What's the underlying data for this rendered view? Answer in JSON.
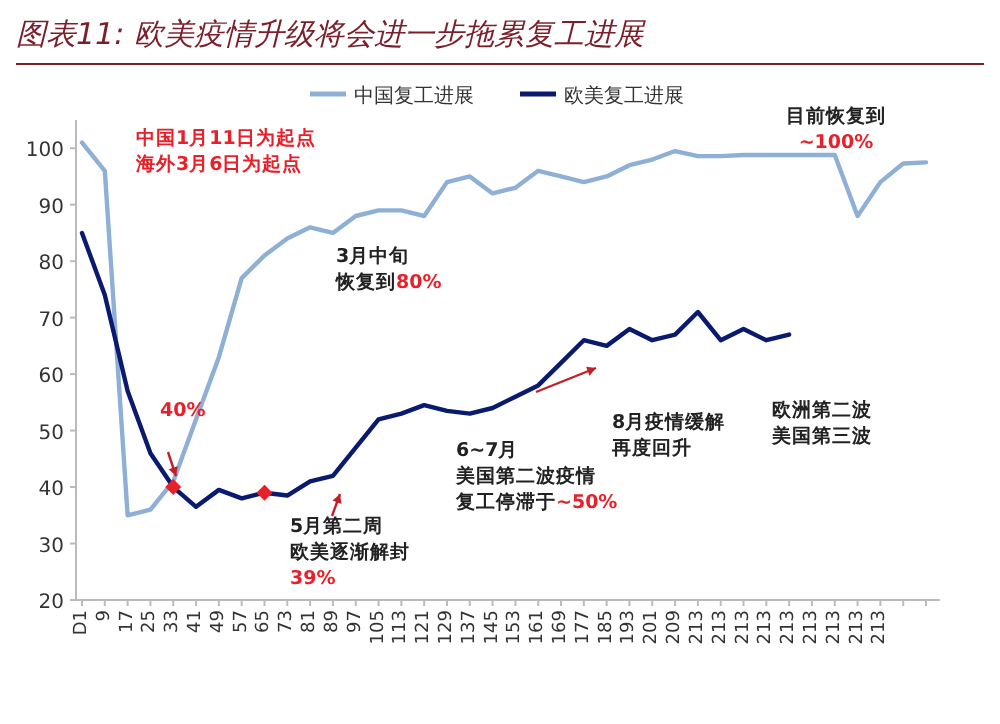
{
  "chart_data": {
    "type": "line",
    "title": "图表11: 欧美疫情升级将会进一步拖累复工进展",
    "categories": [
      "D1",
      "9",
      "17",
      "25",
      "33",
      "41",
      "49",
      "57",
      "65",
      "73",
      "81",
      "89",
      "97",
      "105",
      "113",
      "121",
      "129",
      "137",
      "145",
      "153",
      "161",
      "169",
      "177",
      "185",
      "193",
      "201",
      "209",
      "213",
      "213",
      "213",
      "213",
      "213",
      "213",
      "213",
      "213",
      "213",
      null,
      null
    ],
    "series": [
      {
        "name": "中国复工进展",
        "color": "#8fb0d6",
        "values": [
          101,
          96,
          35,
          36,
          41,
          52,
          63,
          77,
          81,
          84,
          86,
          85,
          88,
          89,
          89,
          88,
          94,
          95,
          92,
          93,
          96,
          95,
          94,
          95,
          97,
          98,
          99.5,
          98.6,
          98.6,
          98.8,
          98.8,
          98.8,
          98.8,
          98.8,
          88,
          94,
          97.3,
          97.5
        ]
      },
      {
        "name": "欧美复工进展",
        "color": "#0a1a6e",
        "values": [
          85,
          74,
          57,
          46,
          40,
          36.5,
          39.5,
          38,
          39,
          38.5,
          41,
          42,
          47,
          52,
          53,
          54.5,
          53.5,
          53,
          54,
          56,
          58,
          62,
          66,
          65,
          68,
          66,
          67,
          71,
          66,
          68,
          66,
          67,
          null,
          null,
          null,
          null,
          null,
          null
        ]
      },
      {
        "type": "scatter",
        "marker": "diamond",
        "color": "#e8202a",
        "values": [
          null,
          null,
          null,
          null,
          40,
          null,
          null,
          null,
          39,
          null,
          null,
          null,
          null,
          null,
          null,
          null,
          null,
          null,
          null,
          null,
          null,
          null,
          null,
          null,
          null,
          null,
          null,
          null,
          null,
          null,
          null,
          null,
          null,
          null,
          null,
          null,
          null,
          null
        ]
      }
    ],
    "ylim": [
      20,
      105
    ],
    "yticks": [
      20,
      30,
      40,
      50,
      60,
      70,
      80,
      90,
      100
    ],
    "legend": "top",
    "annotations": [
      "中国1月11日为起点",
      "海外3月6日为起点",
      "目前恢复到",
      "~100%",
      "3月中旬",
      "恢复到80%",
      "40%",
      "5月第二周",
      "欧美逐渐解封",
      "39%",
      "6~7月",
      "美国第二波疫情",
      "复工停滞于~50%",
      "8月疫情缓解",
      "再度回升",
      "欧洲第二波",
      "美国第三波"
    ]
  }
}
